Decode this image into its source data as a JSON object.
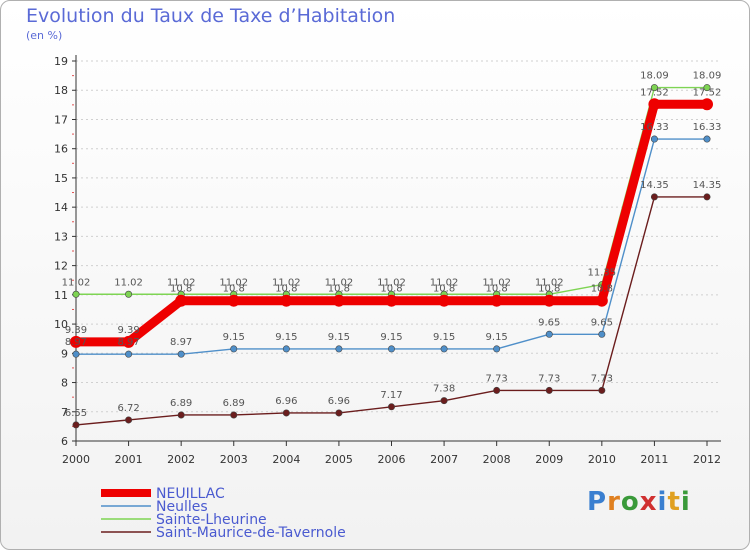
{
  "page": {
    "title": "Evolution du Taux de Taxe d’Habitation",
    "unit": "(en %)",
    "logo": [
      "P",
      "r",
      "o",
      "x",
      "i",
      "t",
      "i"
    ]
  },
  "colors": {
    "neuillac": "#ee0000",
    "neulles": "#4f8fc9",
    "sainte": "#7ed453",
    "saint_maurice": "#6b1d1d",
    "title": "#5a6ad6",
    "grid": "#d0d0d0",
    "axis": "#333333",
    "tick_marker": "#e05050"
  },
  "chart_data": {
    "type": "line",
    "x": [
      2000,
      2001,
      2002,
      2003,
      2004,
      2005,
      2006,
      2007,
      2008,
      2009,
      2010,
      2011,
      2012
    ],
    "ylim": [
      6,
      19
    ],
    "yticks": [
      6,
      7,
      8,
      9,
      10,
      11,
      12,
      13,
      14,
      15,
      16,
      17,
      18,
      19
    ],
    "grid": "horizontal",
    "legend_position": "bottom-left",
    "series": [
      {
        "name": "NEUILLAC",
        "color_key": "neuillac",
        "values": [
          9.39,
          9.39,
          10.8,
          10.8,
          10.8,
          10.8,
          10.8,
          10.8,
          10.8,
          10.8,
          10.8,
          17.52,
          17.52
        ],
        "labels": [
          "9.39",
          "9.39",
          "10.8",
          "10.8",
          "10.8",
          "10.8",
          "10.8",
          "10.8",
          "10.8",
          "10.8",
          "10.8",
          "17.52",
          "17.52"
        ]
      },
      {
        "name": "Neulles",
        "color_key": "neulles",
        "values": [
          8.97,
          8.97,
          8.97,
          9.15,
          9.15,
          9.15,
          9.15,
          9.15,
          9.15,
          9.65,
          9.65,
          16.33,
          16.33
        ],
        "labels": [
          "8.97",
          "8.97",
          "8.97",
          "9.15",
          "9.15",
          "9.15",
          "9.15",
          "9.15",
          "9.15",
          "9.65",
          "9.65",
          "16.33",
          "16.33"
        ]
      },
      {
        "name": "Sainte-Lheurine",
        "color_key": "sainte",
        "values": [
          11.02,
          11.02,
          11.02,
          11.02,
          11.02,
          11.02,
          11.02,
          11.02,
          11.02,
          11.02,
          11.35,
          18.09,
          18.09
        ],
        "labels": [
          "11.02",
          "11.02",
          "11.02",
          "11.02",
          "11.02",
          "11.02",
          "11.02",
          "11.02",
          "11.02",
          "11.02",
          "11.35",
          "18.09",
          "18.09"
        ]
      },
      {
        "name": "Saint-Maurice-de-Tavernole",
        "color_key": "saint_maurice",
        "values": [
          6.55,
          6.72,
          6.89,
          6.89,
          6.96,
          6.96,
          7.17,
          7.38,
          7.73,
          7.73,
          7.73,
          14.35,
          14.35
        ],
        "labels": [
          "6.55",
          "6.72",
          "6.89",
          "6.89",
          "6.96",
          "6.96",
          "7.17",
          "7.38",
          "7.73",
          "7.73",
          "7.73",
          "14.35",
          "14.35"
        ]
      }
    ]
  }
}
